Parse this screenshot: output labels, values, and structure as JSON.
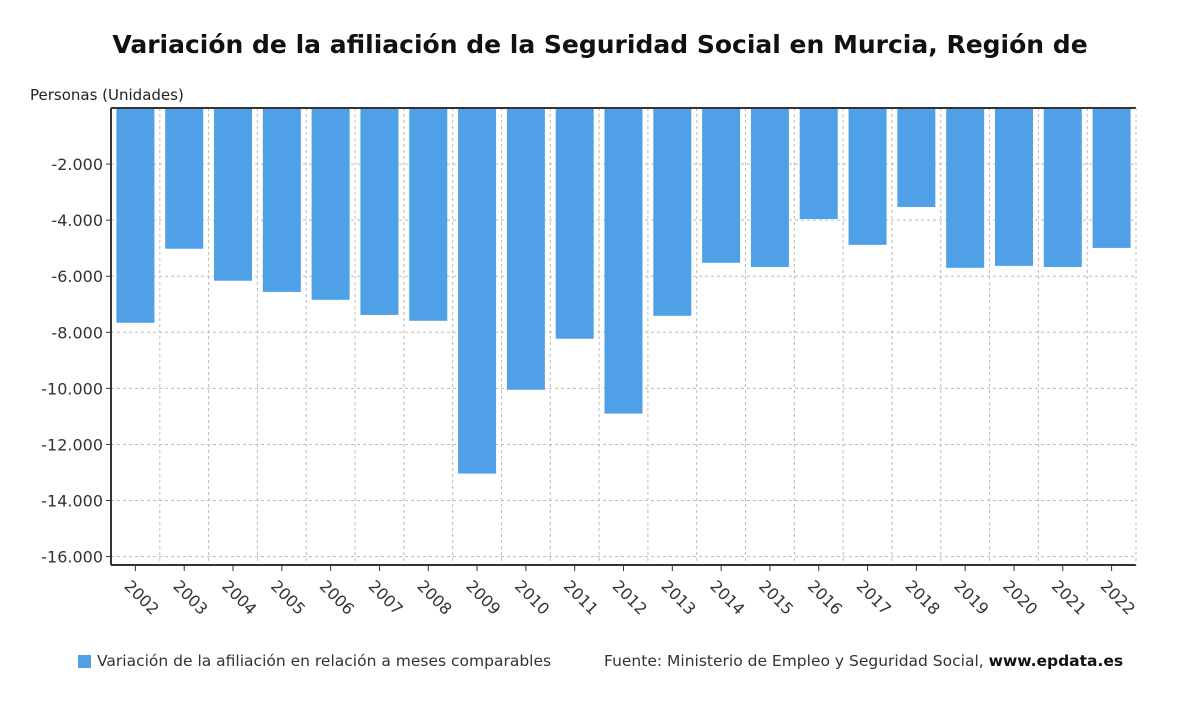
{
  "chart_data": {
    "type": "bar",
    "title": "Variación de la afiliación de la Seguridad Social en Murcia, Región de",
    "ylabel": "Personas (Unidades)",
    "xlabel": "",
    "categories": [
      "2002",
      "2003",
      "2004",
      "2005",
      "2006",
      "2007",
      "2008",
      "2009",
      "2010",
      "2011",
      "2012",
      "2013",
      "2014",
      "2015",
      "2016",
      "2017",
      "2018",
      "2019",
      "2020",
      "2021",
      "2022"
    ],
    "series": [
      {
        "name": "Variación de la afiliación en relación a meses comparables",
        "values": [
          -7660,
          -5020,
          -6160,
          -6560,
          -6840,
          -7380,
          -7590,
          -13040,
          -10050,
          -8230,
          -10900,
          -7410,
          -5520,
          -5670,
          -3960,
          -4880,
          -3530,
          -5700,
          -5630,
          -5670,
          -4990
        ],
        "color": "#4fa0e6"
      }
    ],
    "ylim": [
      -16300,
      0
    ],
    "yticks": [
      -2000,
      -4000,
      -6000,
      -8000,
      -10000,
      -12000,
      -14000,
      -16000
    ],
    "ytick_labels": [
      "-2.000",
      "-4.000",
      "-6.000",
      "-8.000",
      "-10.000",
      "-12.000",
      "-14.000",
      "-16.000"
    ],
    "grid": true,
    "legend_position": "bottom-left"
  },
  "source": {
    "prefix": "Fuente: Ministerio de Empleo y Seguridad Social, ",
    "site": "www.epdata.es"
  }
}
